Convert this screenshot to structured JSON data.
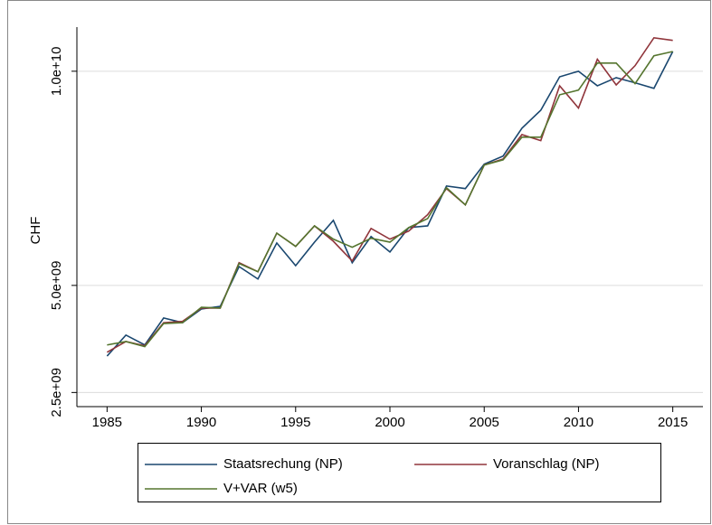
{
  "chart_data": {
    "type": "line",
    "y_label": "CHF",
    "x": [
      1985,
      1986,
      1987,
      1988,
      1989,
      1990,
      1991,
      1992,
      1993,
      1994,
      1995,
      1996,
      1997,
      1998,
      1999,
      2000,
      2001,
      2002,
      2003,
      2004,
      2005,
      2006,
      2007,
      2008,
      2009,
      2010,
      2011,
      2012,
      2013,
      2014,
      2015
    ],
    "series": [
      {
        "name": "Staatsrechung (NP)",
        "color": "#1a476f",
        "values": [
          3350000000,
          3840000000,
          3610000000,
          4240000000,
          4130000000,
          4450000000,
          4510000000,
          5440000000,
          5150000000,
          5990000000,
          5460000000,
          6010000000,
          6520000000,
          5530000000,
          6140000000,
          5780000000,
          6350000000,
          6390000000,
          7320000000,
          7260000000,
          7830000000,
          8020000000,
          8670000000,
          9090000000,
          9870000000,
          10000000000,
          9660000000,
          9850000000,
          9730000000,
          9600000000,
          10460000000
        ]
      },
      {
        "name": "Voranschlag (NP)",
        "color": "#90353b",
        "values": [
          3440000000,
          3690000000,
          3590000000,
          4130000000,
          4160000000,
          4470000000,
          4470000000,
          5530000000,
          5320000000,
          6220000000,
          5910000000,
          6390000000,
          6030000000,
          5570000000,
          6330000000,
          6080000000,
          6270000000,
          6650000000,
          7260000000,
          6880000000,
          7810000000,
          7950000000,
          8520000000,
          8380000000,
          9660000000,
          9140000000,
          10280000000,
          9680000000,
          10130000000,
          10780000000,
          10720000000
        ]
      },
      {
        "name": "V+VAR (w5)",
        "color": "#55752f",
        "values": [
          3610000000,
          3690000000,
          3570000000,
          4110000000,
          4130000000,
          4490000000,
          4470000000,
          5510000000,
          5320000000,
          6220000000,
          5910000000,
          6390000000,
          6080000000,
          5890000000,
          6100000000,
          6010000000,
          6350000000,
          6560000000,
          7280000000,
          6880000000,
          7810000000,
          7930000000,
          8460000000,
          8460000000,
          9450000000,
          9560000000,
          10190000000,
          10190000000,
          9710000000,
          10360000000,
          10460000000
        ]
      }
    ],
    "xlim": [
      1983.4,
      2016.6
    ],
    "ylim": [
      2170000000,
      11030000000
    ],
    "xticks": [
      1985,
      1990,
      1995,
      2000,
      2005,
      2010,
      2015
    ],
    "yticks": [
      {
        "value": 2500000000,
        "label": "2.5e+09"
      },
      {
        "value": 5000000000,
        "label": "5.0e+09"
      },
      {
        "value": 10000000000,
        "label": "1.0e+10"
      }
    ],
    "grid": true
  }
}
